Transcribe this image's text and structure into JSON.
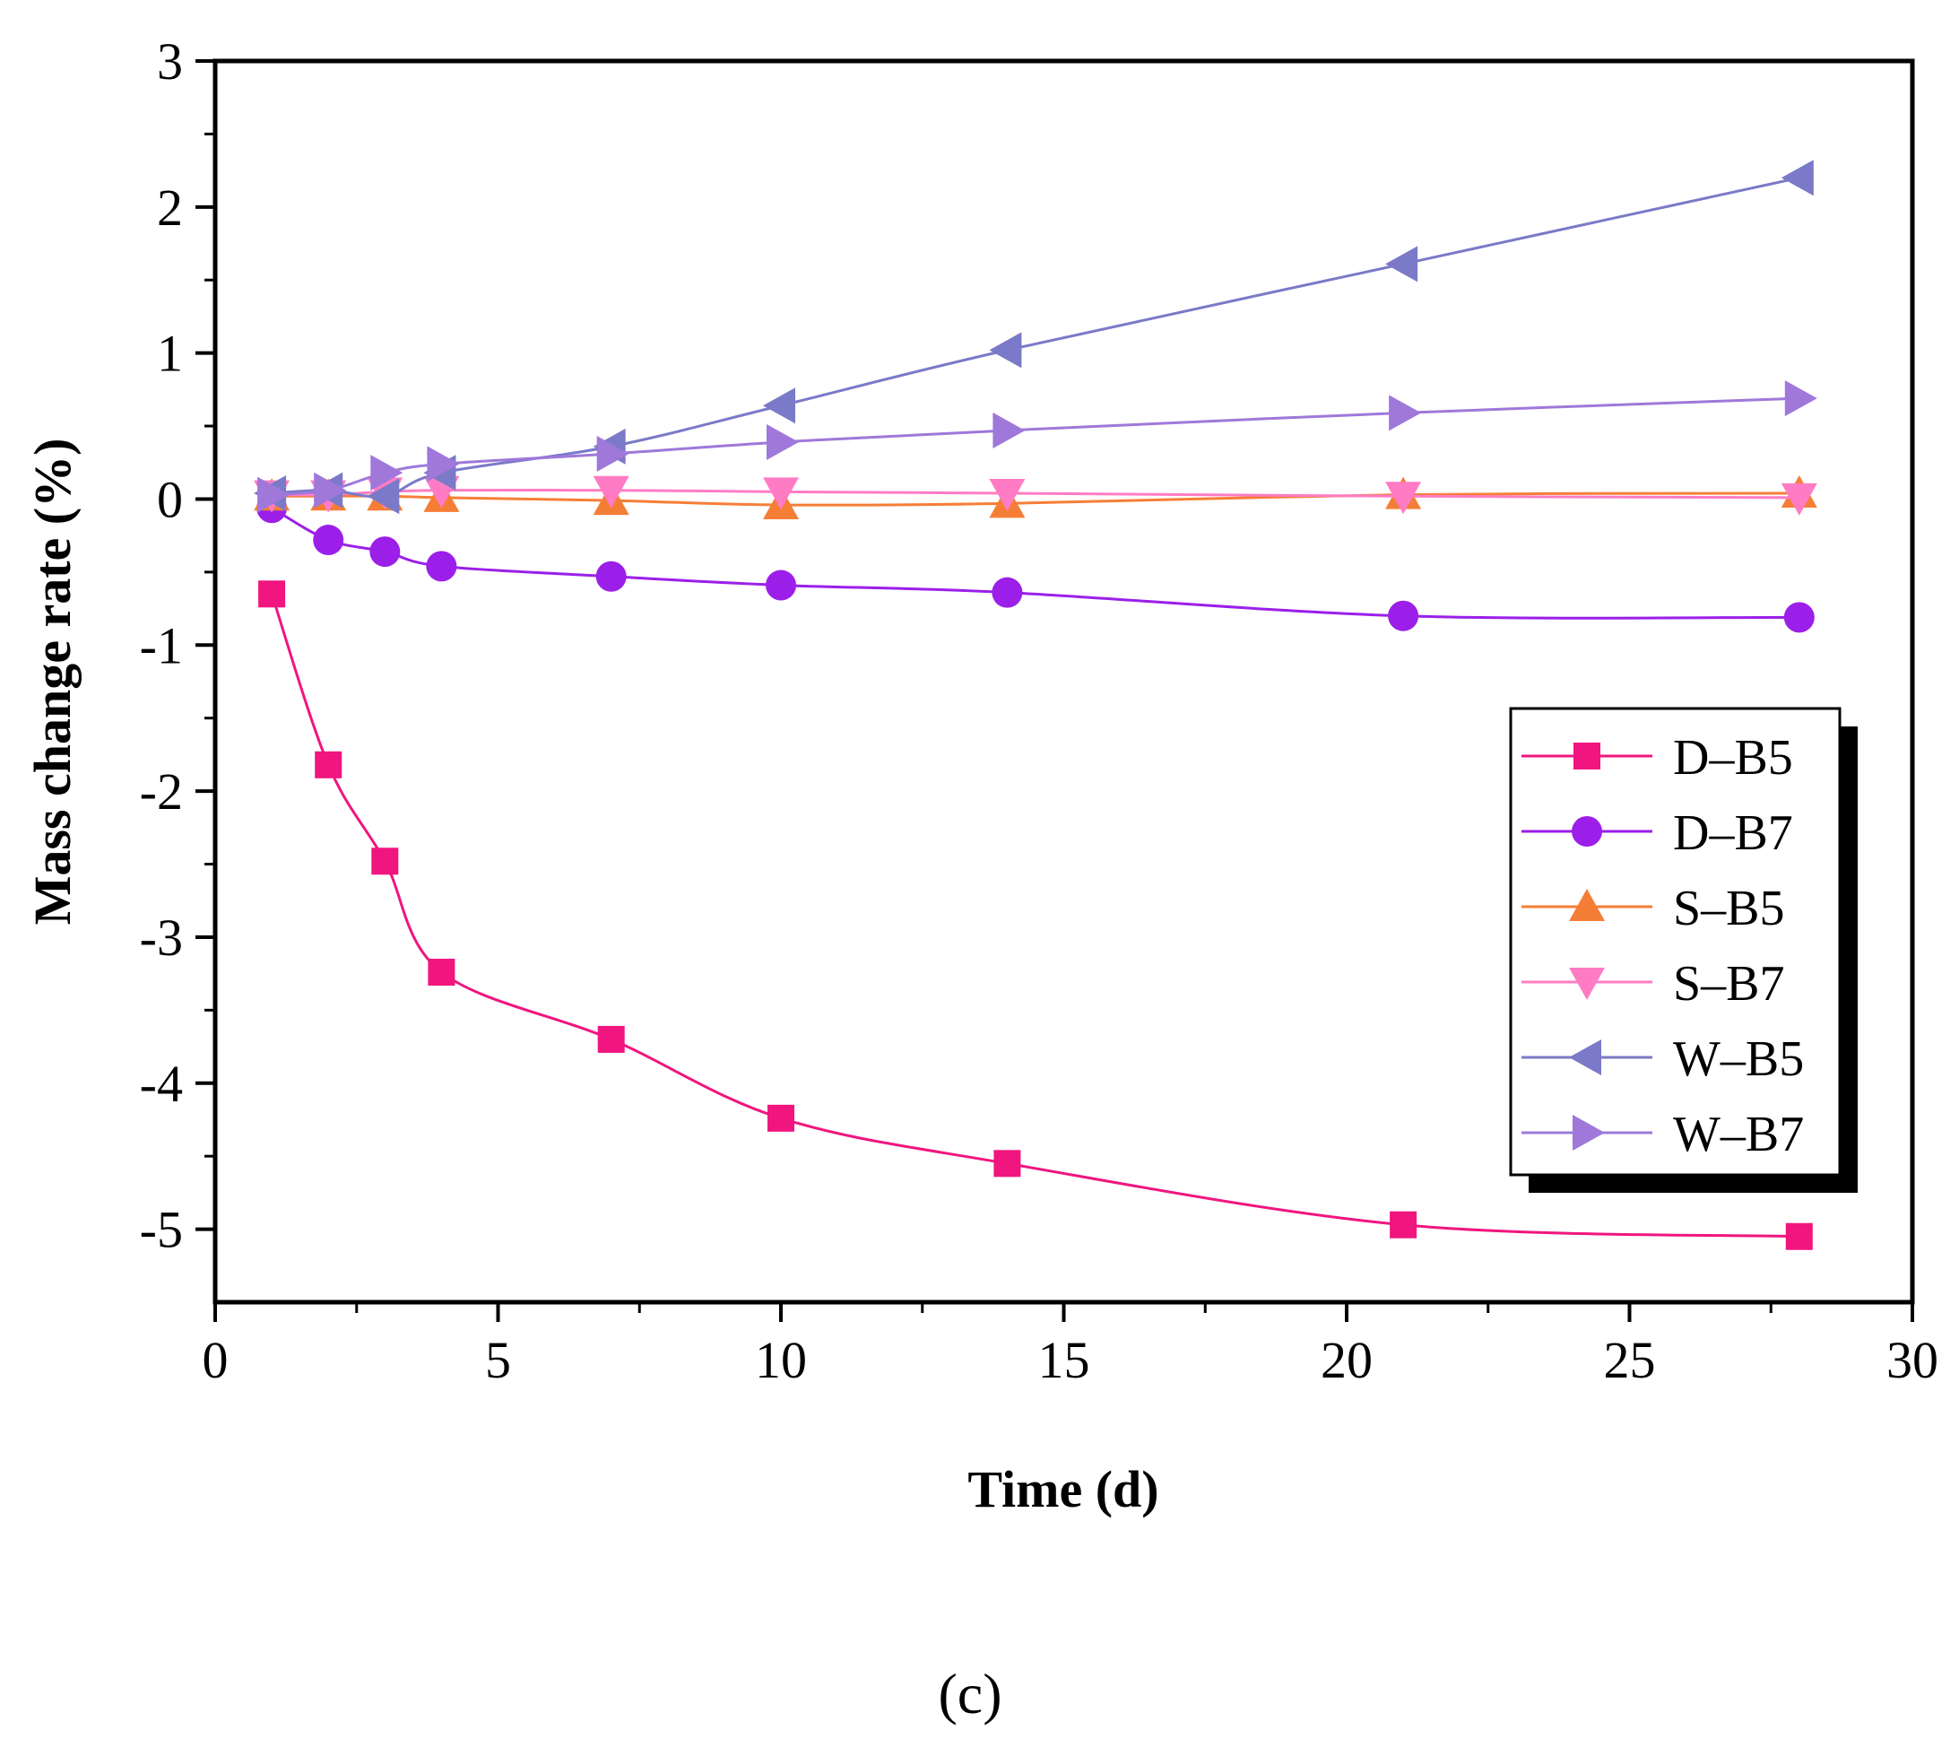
{
  "chart_data": {
    "type": "line",
    "title": "",
    "xlabel": "Time (d)",
    "ylabel": "Mass change rate (%)",
    "panel_label": "(c)",
    "xlim": [
      0,
      30
    ],
    "ylim": [
      -5.5,
      3
    ],
    "x_ticks": [
      0,
      5,
      10,
      15,
      20,
      25,
      30
    ],
    "x_tick_labels": [
      "0",
      "5",
      "10",
      "15",
      "20",
      "25",
      "30"
    ],
    "y_ticks": [
      3,
      2,
      1,
      0,
      -1,
      -2,
      -3,
      -4,
      -5
    ],
    "y_tick_labels": [
      "3",
      "2",
      "1",
      "0",
      "-1",
      "-2",
      "-3",
      "-4",
      "-5"
    ],
    "grid": false,
    "legend_position": "center-right",
    "x": [
      1,
      2,
      3,
      4,
      7,
      10,
      14,
      21,
      28
    ],
    "series": [
      {
        "name": "D–B5",
        "marker": "square",
        "color": "#f0157f",
        "values": [
          -0.65,
          -1.82,
          -2.48,
          -3.24,
          -3.7,
          -4.24,
          -4.55,
          -4.97,
          -5.05
        ]
      },
      {
        "name": "D–B7",
        "marker": "circle",
        "color": "#9b1fe8",
        "values": [
          -0.06,
          -0.28,
          -0.36,
          -0.46,
          -0.53,
          -0.59,
          -0.64,
          -0.8,
          -0.81
        ]
      },
      {
        "name": "S–B5",
        "marker": "triangle-up",
        "color": "#f57e37",
        "values": [
          0.02,
          0.02,
          0.02,
          0.01,
          -0.01,
          -0.04,
          -0.03,
          0.03,
          0.04
        ]
      },
      {
        "name": "S–B7",
        "marker": "triangle-down",
        "color": "#ff7cc4",
        "values": [
          0.03,
          0.03,
          0.05,
          0.06,
          0.06,
          0.05,
          0.04,
          0.02,
          0.01
        ]
      },
      {
        "name": "W–B5",
        "marker": "triangle-left",
        "color": "#7a7ac8",
        "values": [
          0.04,
          0.06,
          0.02,
          0.18,
          0.36,
          0.64,
          1.02,
          1.61,
          2.2
        ]
      },
      {
        "name": "W–B7",
        "marker": "triangle-right",
        "color": "#9f78da",
        "values": [
          0.03,
          0.06,
          0.18,
          0.24,
          0.31,
          0.39,
          0.47,
          0.59,
          0.69
        ]
      }
    ]
  }
}
